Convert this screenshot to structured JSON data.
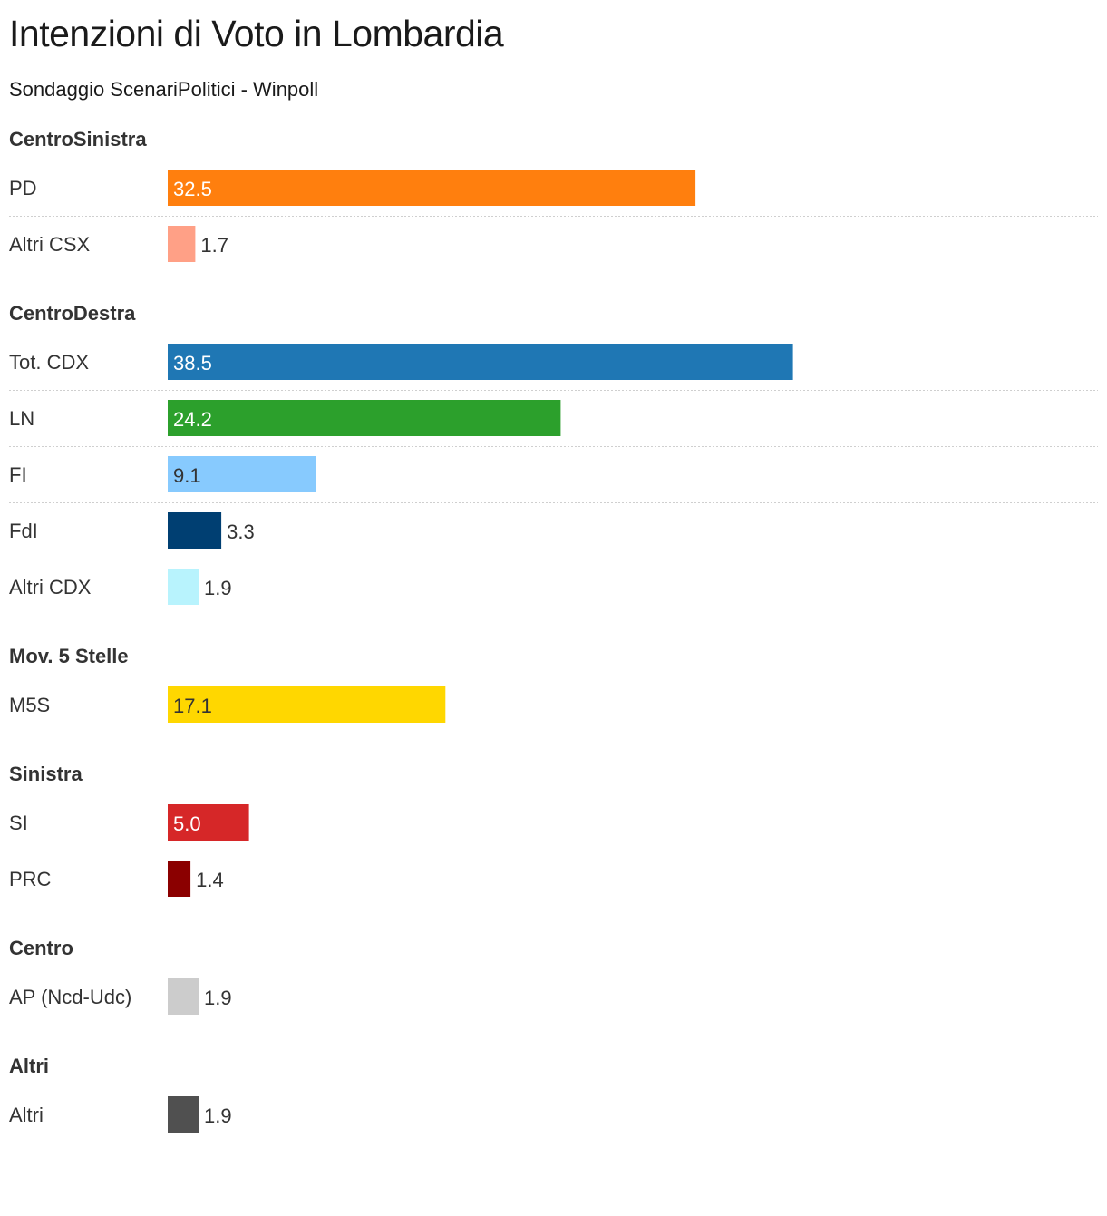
{
  "title": "Intenzioni di Voto in Lombardia",
  "subtitle": "Sondaggio ScenariPolitici - Winpoll",
  "chart_data": {
    "type": "bar",
    "orientation": "horizontal",
    "title": "Intenzioni di Voto in Lombardia",
    "subtitle": "Sondaggio ScenariPolitici - Winpoll",
    "xlim": [
      0,
      46.9
    ],
    "groups": [
      {
        "name": "CentroSinistra",
        "items": [
          {
            "label": "PD",
            "value": 32.5,
            "display": "32.5",
            "color": "#ff7f0e",
            "text_color": "#ffffff"
          },
          {
            "label": "Altri CSX",
            "value": 1.7,
            "display": "1.7",
            "color": "#ffa086",
            "text_color": "#333333"
          }
        ]
      },
      {
        "name": "CentroDestra",
        "items": [
          {
            "label": "Tot. CDX",
            "value": 38.5,
            "display": "38.5",
            "color": "#1f77b4",
            "text_color": "#ffffff"
          },
          {
            "label": "LN",
            "value": 24.2,
            "display": "24.2",
            "color": "#2ca02c",
            "text_color": "#ffffff"
          },
          {
            "label": "FI",
            "value": 9.1,
            "display": "9.1",
            "color": "#87cafe",
            "text_color": "#333333"
          },
          {
            "label": "FdI",
            "value": 3.3,
            "display": "3.3",
            "color": "#003f72",
            "text_color": "#ffffff"
          },
          {
            "label": "Altri CDX",
            "value": 1.9,
            "display": "1.9",
            "color": "#b8f3fd",
            "text_color": "#333333"
          }
        ]
      },
      {
        "name": "Mov. 5 Stelle",
        "items": [
          {
            "label": "M5S",
            "value": 17.1,
            "display": "17.1",
            "color": "#ffd700",
            "text_color": "#333333"
          }
        ]
      },
      {
        "name": "Sinistra",
        "items": [
          {
            "label": "SI",
            "value": 5.0,
            "display": "5.0",
            "color": "#d62728",
            "text_color": "#ffffff"
          },
          {
            "label": "PRC",
            "value": 1.4,
            "display": "1.4",
            "color": "#8b0000",
            "text_color": "#333333"
          }
        ]
      },
      {
        "name": "Centro",
        "items": [
          {
            "label": "AP (Ncd-Udc)",
            "value": 1.9,
            "display": "1.9",
            "color": "#cccccc",
            "text_color": "#333333"
          }
        ]
      },
      {
        "name": "Altri",
        "items": [
          {
            "label": "Altri",
            "value": 1.9,
            "display": "1.9",
            "color": "#505050",
            "text_color": "#333333"
          }
        ]
      }
    ]
  }
}
